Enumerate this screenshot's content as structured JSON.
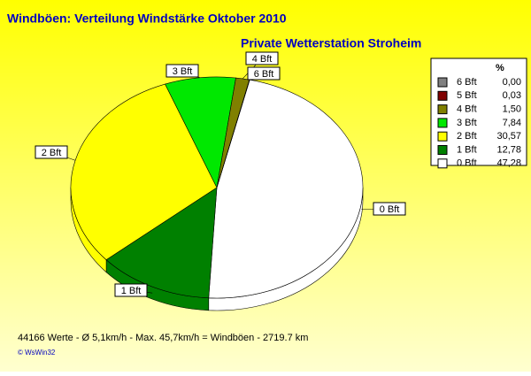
{
  "chart_data": {
    "type": "pie",
    "title": "Windböen: Verteilung Windstärke  Oktober 2010",
    "subtitle": "Private Wetterstation Stroheim",
    "legend_header": "%",
    "series": [
      {
        "name": "0 Bft",
        "color": "#ffffff",
        "values": [
          47.28
        ],
        "value_labels": [
          "47,28"
        ]
      },
      {
        "name": "1 Bft",
        "color": "#008000",
        "values": [
          12.78
        ],
        "value_labels": [
          "12,78"
        ]
      },
      {
        "name": "2 Bft",
        "color": "#ffff00",
        "values": [
          30.57
        ],
        "value_labels": [
          "30,57"
        ]
      },
      {
        "name": "3 Bft",
        "color": "#00e800",
        "values": [
          7.84
        ],
        "value_labels": [
          "7,84"
        ]
      },
      {
        "name": "4 Bft",
        "color": "#808000",
        "values": [
          1.5
        ],
        "value_labels": [
          "1,50"
        ]
      },
      {
        "name": "5 Bft",
        "color": "#800000",
        "values": [
          0.03
        ],
        "value_labels": [
          "0,03"
        ]
      },
      {
        "name": "6 Bft",
        "color": "#808080",
        "values": [
          0
        ],
        "value_labels": [
          "0,00"
        ]
      }
    ],
    "footer": "44166 Werte   -   Ø 5,1km/h  -  Max. 45,7km/h = Windböen   -   2719.7 km",
    "credit": "© WsWin32"
  }
}
